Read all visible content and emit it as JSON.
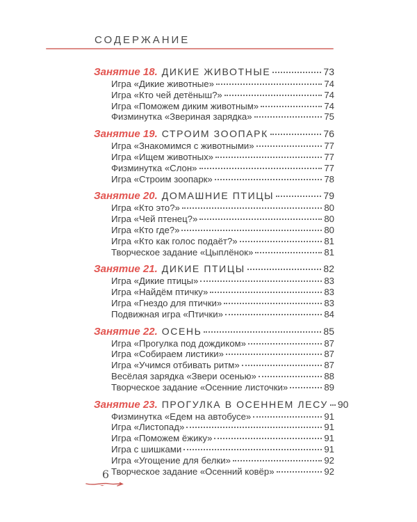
{
  "header": {
    "title": "СОДЕРЖАНИЕ"
  },
  "footer": {
    "page_number": "6"
  },
  "colors": {
    "accent_red": "#e25450",
    "rule_pink": "#dd8b86",
    "text_dark": "#3d3d3d",
    "swash_red": "#c9534f"
  },
  "sections": [
    {
      "label": "Занятие 18.",
      "title": "ДИКИЕ ЖИВОТНЫЕ",
      "page": "73",
      "items": [
        {
          "text": "Игра «Дикие животные»",
          "page": "74"
        },
        {
          "text": "Игра «Кто чей детёныш?»",
          "page": "74"
        },
        {
          "text": "Игра «Поможем диким животным»",
          "page": "74"
        },
        {
          "text": "Физминутка «Звериная зарядка»",
          "page": "75"
        }
      ]
    },
    {
      "label": "Занятие 19.",
      "title": "СТРОИМ ЗООПАРК",
      "page": "76",
      "items": [
        {
          "text": "Игра «Знакомимся с животными»",
          "page": "77"
        },
        {
          "text": "Игра «Ищем животных»",
          "page": "77"
        },
        {
          "text": "Физминутка «Слон»",
          "page": "77"
        },
        {
          "text": "Игра «Строим зоопарк»",
          "page": "78"
        }
      ]
    },
    {
      "label": "Занятие 20.",
      "title": "ДОМАШНИЕ ПТИЦЫ",
      "page": "79",
      "items": [
        {
          "text": "Игра «Кто это?»",
          "page": "80"
        },
        {
          "text": "Игра «Чей птенец?»",
          "page": "80"
        },
        {
          "text": "Игра «Кто где?»",
          "page": "80"
        },
        {
          "text": "Игра «Кто как голос подаёт?»",
          "page": "81"
        },
        {
          "text": "Творческое задание «Цыплёнок»",
          "page": "81"
        }
      ]
    },
    {
      "label": "Занятие 21.",
      "title": "ДИКИЕ ПТИЦЫ",
      "page": "82",
      "items": [
        {
          "text": "Игра «Дикие птицы»",
          "page": "83"
        },
        {
          "text": "Игра «Найдём птичку»",
          "page": "83"
        },
        {
          "text": "Игра «Гнездо для птички»",
          "page": "83"
        },
        {
          "text": "Подвижная игра «Птички»",
          "page": "84"
        }
      ]
    },
    {
      "label": "Занятие 22.",
      "title": "ОСЕНЬ",
      "page": "85",
      "items": [
        {
          "text": "Игра «Прогулка под дождиком»",
          "page": "87"
        },
        {
          "text": "Игра «Собираем листики»",
          "page": "87"
        },
        {
          "text": "Игра «Учимся отбивать ритм»",
          "page": "87"
        },
        {
          "text": "Весёлая зарядка «Звери осенью»",
          "page": "88"
        },
        {
          "text": "Творческое задание «Осенние листочки»",
          "page": "89"
        }
      ]
    },
    {
      "label": "Занятие 23.",
      "title": "ПРОГУЛКА В ОСЕННЕМ ЛЕСУ",
      "page": "90",
      "items": [
        {
          "text": "Физминутка «Едем на автобусе»",
          "page": "91"
        },
        {
          "text": "Игра «Листопад»",
          "page": "91"
        },
        {
          "text": "Игра «Поможем ёжику»",
          "page": "91"
        },
        {
          "text": "Игра с шишками",
          "page": "91"
        },
        {
          "text": "Игра «Угощение для белки»",
          "page": "92"
        },
        {
          "text": "Творческое задание «Осенний ковёр»",
          "page": "92"
        }
      ]
    }
  ]
}
